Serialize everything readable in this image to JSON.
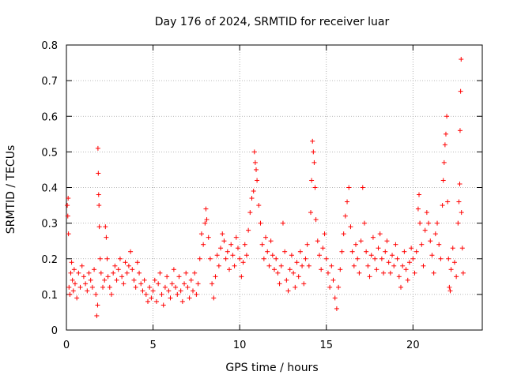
{
  "chart_data": {
    "type": "scatter",
    "title": "Day 176 of 2024, SRMTID for receiver luar",
    "xlabel": "GPS time / hours",
    "ylabel": "SRMTID / TECUs",
    "xlim": [
      0,
      24
    ],
    "ylim": [
      0,
      0.8
    ],
    "xticks": [
      0,
      5,
      10,
      15,
      20
    ],
    "xtick_labels": [
      "0",
      "5",
      "10",
      "15",
      "20"
    ],
    "yticks": [
      0,
      0.1,
      0.2,
      0.3,
      0.4,
      0.5,
      0.6,
      0.7,
      0.8
    ],
    "ytick_labels": [
      "0",
      "0.1",
      "0.2",
      "0.3",
      "0.4",
      "0.5",
      "0.6",
      "0.7",
      "0.8"
    ],
    "grid": true,
    "marker": "+",
    "color": "#ff0000",
    "series": [
      {
        "name": "SRMTID",
        "points": [
          [
            0.05,
            0.35
          ],
          [
            0.08,
            0.32
          ],
          [
            0.1,
            0.37
          ],
          [
            0.12,
            0.27
          ],
          [
            0.15,
            0.12
          ],
          [
            0.2,
            0.1
          ],
          [
            0.25,
            0.16
          ],
          [
            0.3,
            0.19
          ],
          [
            0.35,
            0.14
          ],
          [
            0.4,
            0.11
          ],
          [
            0.45,
            0.17
          ],
          [
            0.5,
            0.13
          ],
          [
            0.6,
            0.09
          ],
          [
            0.7,
            0.16
          ],
          [
            0.8,
            0.12
          ],
          [
            0.9,
            0.18
          ],
          [
            1.0,
            0.15
          ],
          [
            1.1,
            0.13
          ],
          [
            1.2,
            0.11
          ],
          [
            1.3,
            0.16
          ],
          [
            1.4,
            0.14
          ],
          [
            1.5,
            0.12
          ],
          [
            1.6,
            0.17
          ],
          [
            1.7,
            0.1
          ],
          [
            1.75,
            0.04
          ],
          [
            1.8,
            0.07
          ],
          [
            1.82,
            0.51
          ],
          [
            1.84,
            0.44
          ],
          [
            1.86,
            0.38
          ],
          [
            1.88,
            0.35
          ],
          [
            1.9,
            0.29
          ],
          [
            1.95,
            0.2
          ],
          [
            2.0,
            0.16
          ],
          [
            2.1,
            0.12
          ],
          [
            2.2,
            0.14
          ],
          [
            2.25,
            0.29
          ],
          [
            2.3,
            0.26
          ],
          [
            2.35,
            0.2
          ],
          [
            2.4,
            0.15
          ],
          [
            2.5,
            0.12
          ],
          [
            2.6,
            0.1
          ],
          [
            2.7,
            0.16
          ],
          [
            2.8,
            0.18
          ],
          [
            2.9,
            0.14
          ],
          [
            3.0,
            0.17
          ],
          [
            3.1,
            0.2
          ],
          [
            3.2,
            0.15
          ],
          [
            3.3,
            0.13
          ],
          [
            3.4,
            0.19
          ],
          [
            3.5,
            0.16
          ],
          [
            3.6,
            0.18
          ],
          [
            3.7,
            0.22
          ],
          [
            3.8,
            0.17
          ],
          [
            3.9,
            0.14
          ],
          [
            4.0,
            0.12
          ],
          [
            4.1,
            0.19
          ],
          [
            4.2,
            0.16
          ],
          [
            4.3,
            0.13
          ],
          [
            4.4,
            0.11
          ],
          [
            4.5,
            0.14
          ],
          [
            4.6,
            0.1
          ],
          [
            4.7,
            0.08
          ],
          [
            4.8,
            0.12
          ],
          [
            4.9,
            0.09
          ],
          [
            5.0,
            0.11
          ],
          [
            5.1,
            0.14
          ],
          [
            5.2,
            0.08
          ],
          [
            5.3,
            0.13
          ],
          [
            5.4,
            0.16
          ],
          [
            5.5,
            0.1
          ],
          [
            5.6,
            0.07
          ],
          [
            5.7,
            0.12
          ],
          [
            5.8,
            0.15
          ],
          [
            5.9,
            0.11
          ],
          [
            6.0,
            0.09
          ],
          [
            6.1,
            0.13
          ],
          [
            6.2,
            0.17
          ],
          [
            6.3,
            0.12
          ],
          [
            6.4,
            0.1
          ],
          [
            6.5,
            0.15
          ],
          [
            6.6,
            0.11
          ],
          [
            6.7,
            0.08
          ],
          [
            6.8,
            0.13
          ],
          [
            6.9,
            0.16
          ],
          [
            7.0,
            0.12
          ],
          [
            7.1,
            0.09
          ],
          [
            7.2,
            0.14
          ],
          [
            7.3,
            0.11
          ],
          [
            7.4,
            0.16
          ],
          [
            7.5,
            0.1
          ],
          [
            7.6,
            0.13
          ],
          [
            7.7,
            0.2
          ],
          [
            7.8,
            0.27
          ],
          [
            7.9,
            0.24
          ],
          [
            8.0,
            0.3
          ],
          [
            8.05,
            0.34
          ],
          [
            8.1,
            0.31
          ],
          [
            8.2,
            0.26
          ],
          [
            8.3,
            0.2
          ],
          [
            8.4,
            0.13
          ],
          [
            8.5,
            0.09
          ],
          [
            8.6,
            0.15
          ],
          [
            8.7,
            0.21
          ],
          [
            8.8,
            0.18
          ],
          [
            8.9,
            0.23
          ],
          [
            9.0,
            0.27
          ],
          [
            9.1,
            0.25
          ],
          [
            9.2,
            0.2
          ],
          [
            9.3,
            0.22
          ],
          [
            9.4,
            0.17
          ],
          [
            9.5,
            0.24
          ],
          [
            9.6,
            0.21
          ],
          [
            9.7,
            0.18
          ],
          [
            9.8,
            0.26
          ],
          [
            9.9,
            0.23
          ],
          [
            10.0,
            0.2
          ],
          [
            10.1,
            0.15
          ],
          [
            10.2,
            0.19
          ],
          [
            10.3,
            0.24
          ],
          [
            10.4,
            0.21
          ],
          [
            10.5,
            0.28
          ],
          [
            10.6,
            0.33
          ],
          [
            10.7,
            0.37
          ],
          [
            10.8,
            0.39
          ],
          [
            10.85,
            0.5
          ],
          [
            10.9,
            0.47
          ],
          [
            10.95,
            0.45
          ],
          [
            11.0,
            0.42
          ],
          [
            11.1,
            0.35
          ],
          [
            11.2,
            0.3
          ],
          [
            11.3,
            0.24
          ],
          [
            11.4,
            0.2
          ],
          [
            11.5,
            0.26
          ],
          [
            11.6,
            0.22
          ],
          [
            11.7,
            0.18
          ],
          [
            11.8,
            0.25
          ],
          [
            11.9,
            0.21
          ],
          [
            12.0,
            0.17
          ],
          [
            12.1,
            0.2
          ],
          [
            12.2,
            0.16
          ],
          [
            12.3,
            0.13
          ],
          [
            12.4,
            0.18
          ],
          [
            12.5,
            0.3
          ],
          [
            12.6,
            0.22
          ],
          [
            12.7,
            0.14
          ],
          [
            12.8,
            0.11
          ],
          [
            12.9,
            0.17
          ],
          [
            13.0,
            0.21
          ],
          [
            13.1,
            0.16
          ],
          [
            13.2,
            0.12
          ],
          [
            13.3,
            0.19
          ],
          [
            13.4,
            0.15
          ],
          [
            13.5,
            0.22
          ],
          [
            13.6,
            0.18
          ],
          [
            13.7,
            0.13
          ],
          [
            13.8,
            0.2
          ],
          [
            13.9,
            0.24
          ],
          [
            14.0,
            0.18
          ],
          [
            14.1,
            0.33
          ],
          [
            14.15,
            0.42
          ],
          [
            14.2,
            0.53
          ],
          [
            14.25,
            0.5
          ],
          [
            14.3,
            0.47
          ],
          [
            14.35,
            0.4
          ],
          [
            14.4,
            0.31
          ],
          [
            14.5,
            0.25
          ],
          [
            14.6,
            0.21
          ],
          [
            14.7,
            0.17
          ],
          [
            14.8,
            0.23
          ],
          [
            14.9,
            0.27
          ],
          [
            15.0,
            0.2
          ],
          [
            15.1,
            0.16
          ],
          [
            15.2,
            0.12
          ],
          [
            15.3,
            0.18
          ],
          [
            15.4,
            0.14
          ],
          [
            15.5,
            0.09
          ],
          [
            15.6,
            0.06
          ],
          [
            15.7,
            0.12
          ],
          [
            15.8,
            0.17
          ],
          [
            15.9,
            0.22
          ],
          [
            16.0,
            0.27
          ],
          [
            16.1,
            0.32
          ],
          [
            16.2,
            0.36
          ],
          [
            16.3,
            0.4
          ],
          [
            16.4,
            0.29
          ],
          [
            16.5,
            0.22
          ],
          [
            16.6,
            0.18
          ],
          [
            16.7,
            0.24
          ],
          [
            16.8,
            0.2
          ],
          [
            16.9,
            0.16
          ],
          [
            17.0,
            0.25
          ],
          [
            17.1,
            0.4
          ],
          [
            17.2,
            0.3
          ],
          [
            17.3,
            0.22
          ],
          [
            17.4,
            0.18
          ],
          [
            17.5,
            0.15
          ],
          [
            17.6,
            0.21
          ],
          [
            17.7,
            0.26
          ],
          [
            17.8,
            0.2
          ],
          [
            17.9,
            0.17
          ],
          [
            18.0,
            0.23
          ],
          [
            18.1,
            0.27
          ],
          [
            18.2,
            0.2
          ],
          [
            18.3,
            0.16
          ],
          [
            18.4,
            0.22
          ],
          [
            18.5,
            0.25
          ],
          [
            18.6,
            0.19
          ],
          [
            18.7,
            0.16
          ],
          [
            18.8,
            0.21
          ],
          [
            18.9,
            0.18
          ],
          [
            19.0,
            0.24
          ],
          [
            19.1,
            0.2
          ],
          [
            19.2,
            0.15
          ],
          [
            19.3,
            0.12
          ],
          [
            19.4,
            0.18
          ],
          [
            19.5,
            0.22
          ],
          [
            19.6,
            0.17
          ],
          [
            19.7,
            0.14
          ],
          [
            19.8,
            0.19
          ],
          [
            19.9,
            0.23
          ],
          [
            20.0,
            0.2
          ],
          [
            20.1,
            0.16
          ],
          [
            20.2,
            0.22
          ],
          [
            20.3,
            0.34
          ],
          [
            20.35,
            0.38
          ],
          [
            20.4,
            0.3
          ],
          [
            20.5,
            0.24
          ],
          [
            20.6,
            0.18
          ],
          [
            20.7,
            0.28
          ],
          [
            20.8,
            0.33
          ],
          [
            20.9,
            0.3
          ],
          [
            21.0,
            0.25
          ],
          [
            21.1,
            0.21
          ],
          [
            21.2,
            0.16
          ],
          [
            21.3,
            0.27
          ],
          [
            21.4,
            0.3
          ],
          [
            21.5,
            0.24
          ],
          [
            21.6,
            0.2
          ],
          [
            21.7,
            0.35
          ],
          [
            21.75,
            0.42
          ],
          [
            21.8,
            0.47
          ],
          [
            21.85,
            0.52
          ],
          [
            21.9,
            0.55
          ],
          [
            21.95,
            0.6
          ],
          [
            22.0,
            0.36
          ],
          [
            22.05,
            0.2
          ],
          [
            22.1,
            0.12
          ],
          [
            22.15,
            0.11
          ],
          [
            22.2,
            0.17
          ],
          [
            22.3,
            0.23
          ],
          [
            22.4,
            0.19
          ],
          [
            22.5,
            0.15
          ],
          [
            22.6,
            0.3
          ],
          [
            22.65,
            0.36
          ],
          [
            22.7,
            0.41
          ],
          [
            22.72,
            0.56
          ],
          [
            22.75,
            0.67
          ],
          [
            22.78,
            0.76
          ],
          [
            22.8,
            0.33
          ],
          [
            22.85,
            0.23
          ],
          [
            22.9,
            0.16
          ]
        ]
      }
    ]
  }
}
